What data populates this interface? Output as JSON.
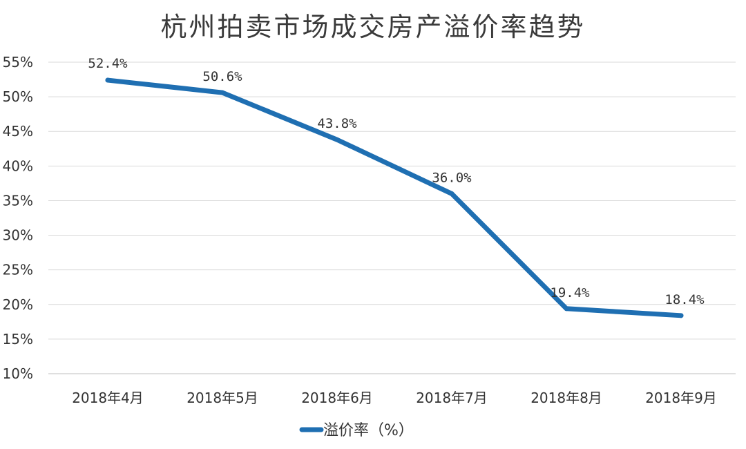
{
  "chart_data": {
    "type": "line",
    "title": "杭州拍卖市场成交房产溢价率趋势",
    "categories": [
      "2018年4月",
      "2018年5月",
      "2018年6月",
      "2018年7月",
      "2018年8月",
      "2018年9月"
    ],
    "series": [
      {
        "name": "溢价率（%）",
        "values": [
          52.4,
          50.6,
          43.8,
          36.0,
          19.4,
          18.4
        ],
        "labels": [
          "52.4%",
          "50.6%",
          "43.8%",
          "36.0%",
          "19.4%",
          "18.4%"
        ],
        "color": "#1f6fb2"
      }
    ],
    "y_ticks": [
      "10%",
      "15%",
      "20%",
      "25%",
      "30%",
      "35%",
      "40%",
      "45%",
      "50%",
      "55%"
    ],
    "ylim": [
      10,
      55
    ],
    "grid": true,
    "legend": "bottom-center"
  }
}
